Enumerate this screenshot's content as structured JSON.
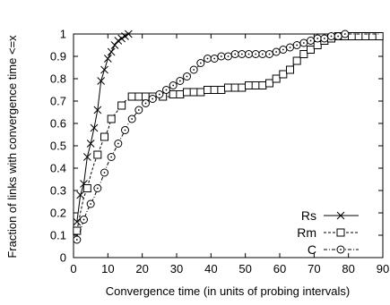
{
  "chart_data": {
    "type": "line",
    "title": "",
    "xlabel": "Convergence time (in units of probing intervals)",
    "ylabel": "Fraction of links with convergence time <=x",
    "xlim": [
      0,
      90
    ],
    "ylim": [
      0,
      1
    ],
    "x_ticks": [
      0,
      10,
      20,
      30,
      40,
      50,
      60,
      70,
      80,
      90
    ],
    "y_ticks": [
      0,
      0.1,
      0.2,
      0.3,
      0.4,
      0.5,
      0.6,
      0.7,
      0.8,
      0.9,
      1
    ],
    "grid": false,
    "legend_position": "bottom-right",
    "series": [
      {
        "name": "Rs",
        "marker": "x",
        "line_style": "solid",
        "x": [
          1,
          2,
          3,
          4,
          5,
          6,
          7,
          8,
          9,
          10,
          11,
          12,
          13,
          14,
          15,
          16
        ],
        "y": [
          0.16,
          0.28,
          0.33,
          0.45,
          0.51,
          0.58,
          0.66,
          0.79,
          0.84,
          0.89,
          0.92,
          0.95,
          0.97,
          0.98,
          0.99,
          1.0
        ],
        "marked": [
          true,
          true,
          true,
          true,
          true,
          true,
          true,
          true,
          true,
          true,
          true,
          true,
          true,
          true,
          true,
          true
        ]
      },
      {
        "name": "Rm",
        "marker": "square",
        "line_style": "dashed",
        "x": [
          1,
          2,
          3,
          4,
          5,
          6,
          7,
          8,
          9,
          10,
          11,
          12,
          13,
          14,
          15,
          16,
          17,
          18,
          19,
          20,
          21,
          22,
          23,
          24,
          25,
          26,
          27,
          28,
          29,
          30,
          31,
          32,
          33,
          34,
          35,
          36,
          37,
          38,
          39,
          40,
          41,
          42,
          43,
          44,
          45,
          46,
          47,
          48,
          49,
          50,
          51,
          52,
          53,
          54,
          55,
          56,
          57,
          58,
          59,
          60,
          61,
          62,
          63,
          64,
          65,
          66,
          67,
          68,
          69,
          70,
          71,
          72,
          73,
          74,
          75,
          76,
          77,
          78,
          79,
          80,
          81,
          82,
          83,
          84,
          85,
          86,
          87,
          88,
          89
        ],
        "y": [
          0.12,
          0.2,
          0.27,
          0.31,
          0.37,
          0.42,
          0.46,
          0.5,
          0.54,
          0.57,
          0.62,
          0.64,
          0.66,
          0.68,
          0.7,
          0.71,
          0.72,
          0.72,
          0.72,
          0.72,
          0.72,
          0.72,
          0.72,
          0.72,
          0.72,
          0.72,
          0.72,
          0.72,
          0.73,
          0.73,
          0.73,
          0.74,
          0.74,
          0.74,
          0.74,
          0.74,
          0.74,
          0.75,
          0.75,
          0.75,
          0.75,
          0.75,
          0.75,
          0.75,
          0.76,
          0.76,
          0.76,
          0.76,
          0.76,
          0.76,
          0.77,
          0.77,
          0.77,
          0.77,
          0.77,
          0.78,
          0.78,
          0.79,
          0.8,
          0.81,
          0.82,
          0.83,
          0.84,
          0.86,
          0.88,
          0.9,
          0.91,
          0.92,
          0.93,
          0.94,
          0.95,
          0.96,
          0.97,
          0.98,
          0.98,
          0.98,
          0.99,
          0.99,
          0.99,
          0.99,
          0.99,
          0.99,
          0.99,
          0.99,
          0.99,
          0.99,
          0.99,
          0.99,
          0.99
        ],
        "marked": [
          true,
          false,
          false,
          true,
          false,
          false,
          true,
          false,
          true,
          false,
          true,
          false,
          false,
          true,
          false,
          false,
          true,
          false,
          true,
          false,
          true,
          false,
          true,
          false,
          false,
          true,
          false,
          false,
          true,
          false,
          true,
          false,
          true,
          false,
          true,
          false,
          true,
          false,
          true,
          false,
          true,
          false,
          true,
          false,
          true,
          false,
          true,
          false,
          true,
          false,
          true,
          false,
          true,
          false,
          true,
          false,
          true,
          false,
          true,
          false,
          true,
          false,
          true,
          false,
          true,
          false,
          true,
          false,
          true,
          false,
          true,
          false,
          true,
          false,
          true,
          false,
          true,
          false,
          true,
          false,
          true,
          false,
          true,
          false,
          true,
          false,
          true,
          false,
          true
        ]
      },
      {
        "name": "C",
        "marker": "circle",
        "line_style": "dash-dot",
        "x": [
          1,
          2,
          3,
          4,
          5,
          6,
          7,
          8,
          9,
          10,
          11,
          12,
          13,
          14,
          15,
          16,
          17,
          18,
          19,
          20,
          21,
          22,
          23,
          24,
          25,
          26,
          27,
          28,
          29,
          30,
          31,
          32,
          33,
          34,
          35,
          36,
          37,
          38,
          39,
          40,
          41,
          42,
          43,
          44,
          45,
          46,
          47,
          48,
          49,
          50,
          51,
          52,
          53,
          54,
          55,
          56,
          57,
          58,
          59,
          60,
          61,
          62,
          63,
          64,
          65,
          66,
          67,
          68,
          69,
          70,
          71,
          72,
          73,
          74,
          75,
          76,
          77,
          78,
          79,
          80,
          81,
          82,
          83,
          84,
          85,
          86,
          87,
          88,
          89
        ],
        "y": [
          0.08,
          0.12,
          0.17,
          0.21,
          0.24,
          0.27,
          0.31,
          0.34,
          0.38,
          0.42,
          0.45,
          0.48,
          0.51,
          0.54,
          0.57,
          0.6,
          0.62,
          0.64,
          0.66,
          0.67,
          0.69,
          0.7,
          0.71,
          0.72,
          0.73,
          0.74,
          0.75,
          0.76,
          0.77,
          0.78,
          0.79,
          0.8,
          0.81,
          0.82,
          0.84,
          0.85,
          0.87,
          0.88,
          0.89,
          0.89,
          0.89,
          0.9,
          0.9,
          0.9,
          0.9,
          0.9,
          0.91,
          0.91,
          0.91,
          0.91,
          0.91,
          0.91,
          0.91,
          0.91,
          0.91,
          0.91,
          0.91,
          0.92,
          0.92,
          0.92,
          0.93,
          0.93,
          0.94,
          0.94,
          0.95,
          0.96,
          0.96,
          0.97,
          0.97,
          0.98,
          0.98,
          0.98,
          0.98,
          0.99,
          0.99,
          0.99,
          0.99,
          0.99,
          1.0,
          1.0,
          1.0,
          1.0,
          1.0,
          1.0,
          1.0,
          1.0,
          1.0,
          1.0,
          1.0
        ],
        "marked": [
          true,
          false,
          true,
          false,
          true,
          false,
          true,
          false,
          true,
          false,
          true,
          false,
          true,
          false,
          true,
          false,
          true,
          false,
          true,
          false,
          true,
          false,
          true,
          false,
          true,
          false,
          true,
          false,
          true,
          false,
          true,
          false,
          true,
          false,
          true,
          false,
          true,
          false,
          true,
          false,
          true,
          false,
          true,
          false,
          true,
          false,
          true,
          false,
          true,
          false,
          true,
          false,
          true,
          false,
          true,
          false,
          true,
          false,
          true,
          false,
          true,
          false,
          true,
          false,
          true,
          false,
          true,
          false,
          true,
          false,
          true,
          false,
          true,
          false,
          true,
          false,
          true,
          false,
          true,
          false,
          false,
          false,
          false,
          false,
          false,
          false,
          false,
          false,
          false
        ]
      }
    ]
  }
}
